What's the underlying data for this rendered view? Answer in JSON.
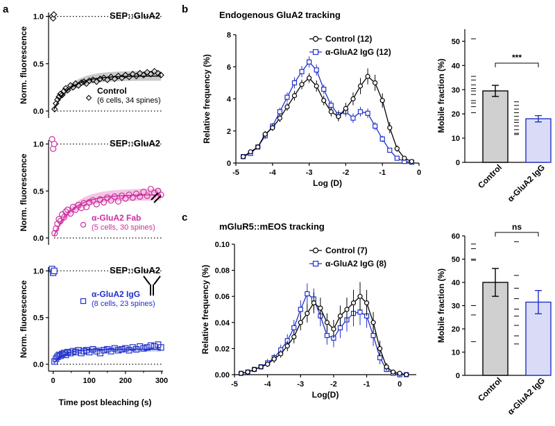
{
  "panel_labels": {
    "a": "a",
    "b": "b",
    "c": "c"
  },
  "colors": {
    "control": "#000000",
    "fab": "#cc2c9e",
    "igg": "#1f2fc8",
    "gray_fill": "#d0d0d0",
    "blue_fill": "#dadcf7",
    "fit_band": "#bdbdbd"
  },
  "chart_data": [
    {
      "id": "a1",
      "type": "scatter",
      "title": "SEP::GluA2",
      "xlabel": "",
      "ylabel": "Norm. fluorescence",
      "xlim": [
        -5,
        300
      ],
      "ylim": [
        0,
        1.1
      ],
      "yticks": [
        "0.0",
        "0.5",
        "1.0"
      ],
      "legend": {
        "label": "Control",
        "note": "(6 cells, 34 spines)"
      },
      "pre_points": [
        [
          -3,
          1.0
        ],
        [
          0,
          0.98
        ],
        [
          2,
          1.02
        ]
      ],
      "fit": {
        "plateau": 0.37,
        "tau": 45
      },
      "x": [
        4,
        8,
        12,
        16,
        20,
        25,
        30,
        35,
        40,
        48,
        55,
        62,
        70,
        78,
        85,
        92,
        100,
        110,
        120,
        130,
        140,
        150,
        160,
        170,
        180,
        190,
        200,
        210,
        220,
        230,
        240,
        250,
        260,
        270,
        280,
        290,
        298
      ],
      "values": [
        0.02,
        0.08,
        0.12,
        0.15,
        0.18,
        0.17,
        0.21,
        0.24,
        0.22,
        0.27,
        0.25,
        0.29,
        0.27,
        0.3,
        0.31,
        0.29,
        0.32,
        0.33,
        0.31,
        0.34,
        0.35,
        0.33,
        0.36,
        0.34,
        0.37,
        0.35,
        0.38,
        0.36,
        0.39,
        0.37,
        0.4,
        0.38,
        0.41,
        0.39,
        0.42,
        0.4,
        0.38
      ]
    },
    {
      "id": "a2",
      "type": "scatter",
      "title": "SEP::GluA2",
      "xlabel": "",
      "ylabel": "Norm. fluorescence",
      "xlim": [
        -5,
        300
      ],
      "ylim": [
        0,
        1.1
      ],
      "yticks": [
        "0.0",
        "0.5",
        "1.0"
      ],
      "legend": {
        "label": "α-GluA2 Fab",
        "note": "(5 cells, 30 spines)"
      },
      "pre_points": [
        [
          -3,
          1.05
        ],
        [
          0,
          0.95
        ],
        [
          3,
          1.0
        ]
      ],
      "fit": {
        "plateau": 0.46,
        "tau": 50
      },
      "x": [
        4,
        8,
        12,
        16,
        20,
        25,
        30,
        35,
        40,
        48,
        55,
        62,
        70,
        78,
        85,
        92,
        100,
        110,
        120,
        130,
        140,
        150,
        160,
        170,
        180,
        190,
        200,
        210,
        220,
        230,
        240,
        250,
        260,
        270,
        280,
        290,
        298
      ],
      "values": [
        0.05,
        0.1,
        0.15,
        0.2,
        0.18,
        0.25,
        0.22,
        0.28,
        0.3,
        0.26,
        0.33,
        0.3,
        0.35,
        0.32,
        0.37,
        0.33,
        0.38,
        0.4,
        0.36,
        0.41,
        0.38,
        0.43,
        0.4,
        0.44,
        0.39,
        0.45,
        0.42,
        0.46,
        0.43,
        0.47,
        0.44,
        0.49,
        0.45,
        0.52,
        0.48,
        0.5,
        0.46
      ]
    },
    {
      "id": "a3",
      "type": "scatter",
      "title": "SEP::GluA2",
      "xlabel": "Time post bleaching (s)",
      "ylabel": "Norm. fluorescence",
      "xlim": [
        -5,
        300
      ],
      "ylim": [
        0,
        1.1
      ],
      "xticks": [
        "0",
        "100",
        "200",
        "300"
      ],
      "yticks": [
        "0.0",
        "0.5",
        "1.0"
      ],
      "legend": {
        "label": "α-GluA2 IgG",
        "note": "(8 cells, 23 spines)"
      },
      "pre_points": [
        [
          -3,
          1.02
        ],
        [
          0,
          0.98
        ],
        [
          3,
          1.0
        ]
      ],
      "fit": {
        "plateau": 0.16,
        "tau": 30
      },
      "x": [
        4,
        8,
        12,
        16,
        20,
        25,
        30,
        35,
        40,
        48,
        55,
        62,
        70,
        78,
        85,
        92,
        100,
        110,
        120,
        130,
        140,
        150,
        160,
        170,
        180,
        190,
        200,
        210,
        220,
        230,
        240,
        250,
        260,
        270,
        280,
        290,
        298
      ],
      "values": [
        0.03,
        0.06,
        0.08,
        0.1,
        0.09,
        0.11,
        0.12,
        0.1,
        0.13,
        0.12,
        0.14,
        0.13,
        0.15,
        0.12,
        0.14,
        0.15,
        0.13,
        0.16,
        0.14,
        0.12,
        0.15,
        0.16,
        0.14,
        0.17,
        0.15,
        0.16,
        0.17,
        0.15,
        0.18,
        0.16,
        0.19,
        0.17,
        0.18,
        0.2,
        0.19,
        0.21,
        0.18
      ]
    },
    {
      "id": "b1",
      "type": "line",
      "title": "Endogenous GluA2 tracking",
      "xlabel": "Log (D)",
      "ylabel": "Relative frequency (%)",
      "xlim": [
        -5,
        0
      ],
      "ylim": [
        0,
        8
      ],
      "xticks": [
        "-5",
        "-4",
        "-3",
        "-2",
        "-1",
        "0"
      ],
      "yticks": [
        "0",
        "2",
        "4",
        "6",
        "8"
      ],
      "x": [
        -4.8,
        -4.6,
        -4.4,
        -4.2,
        -4.0,
        -3.8,
        -3.6,
        -3.4,
        -3.2,
        -3.0,
        -2.8,
        -2.6,
        -2.4,
        -2.2,
        -2.0,
        -1.8,
        -1.6,
        -1.4,
        -1.2,
        -1.0,
        -0.8,
        -0.6,
        -0.4,
        -0.2
      ],
      "series": [
        {
          "name": "Control (12)",
          "marker": "circle",
          "values": [
            0.4,
            0.7,
            1.0,
            1.8,
            2.2,
            2.8,
            3.5,
            4.2,
            4.9,
            5.3,
            4.8,
            3.9,
            3.2,
            2.9,
            3.4,
            4.0,
            4.8,
            5.4,
            5.0,
            3.9,
            2.2,
            0.9,
            0.3,
            0.1
          ],
          "errors": [
            0.1,
            0.15,
            0.15,
            0.2,
            0.2,
            0.25,
            0.25,
            0.3,
            0.3,
            0.3,
            0.35,
            0.3,
            0.3,
            0.3,
            0.35,
            0.4,
            0.5,
            0.5,
            0.5,
            0.45,
            0.35,
            0.2,
            0.1,
            0.05
          ]
        },
        {
          "name": "α-GluA2 IgG (12)",
          "marker": "square",
          "values": [
            0.4,
            0.6,
            1.0,
            1.7,
            2.3,
            3.2,
            4.1,
            5.0,
            5.7,
            6.3,
            5.8,
            4.6,
            3.6,
            3.0,
            3.2,
            2.8,
            3.2,
            3.1,
            2.3,
            1.5,
            0.8,
            0.3,
            0.1,
            0.05
          ],
          "errors": [
            0.1,
            0.1,
            0.15,
            0.2,
            0.2,
            0.25,
            0.3,
            0.35,
            0.35,
            0.35,
            0.35,
            0.3,
            0.3,
            0.3,
            0.3,
            0.3,
            0.3,
            0.3,
            0.25,
            0.2,
            0.15,
            0.1,
            0.05,
            0.05
          ]
        }
      ]
    },
    {
      "id": "b2",
      "type": "bar",
      "title": "",
      "xlabel": "",
      "ylabel": "Mobile fraction (%)",
      "ylim": [
        0,
        55
      ],
      "yticks": [
        "0",
        "10",
        "20",
        "30",
        "40",
        "50"
      ],
      "categories": [
        "Control",
        "α-GluA2 IgG"
      ],
      "values": [
        29.5,
        18.0
      ],
      "errors": [
        2.3,
        1.3
      ],
      "points": [
        [
          51,
          35.5,
          34,
          32,
          30.5,
          29.5,
          28,
          25.5,
          24.5,
          23,
          20.5
        ],
        [
          25,
          23.5,
          22,
          20.5,
          19,
          17.5,
          16.5,
          15,
          13.5,
          12,
          11.5
        ]
      ],
      "significance": "***"
    },
    {
      "id": "c1",
      "type": "line",
      "title": "mGluR5::mEOS tracking",
      "xlabel": "Log(D)",
      "ylabel": "Relative frequency (%)",
      "xlim": [
        -5,
        0.5
      ],
      "ylim": [
        0,
        0.1
      ],
      "xticks": [
        "-5",
        "-4",
        "-3",
        "-2",
        "-1",
        "0"
      ],
      "yticks": [
        "0.00",
        "0.02",
        "0.04",
        "0.06",
        "0.08",
        "0.10"
      ],
      "x": [
        -4.8,
        -4.6,
        -4.4,
        -4.2,
        -4.0,
        -3.8,
        -3.6,
        -3.4,
        -3.2,
        -3.0,
        -2.8,
        -2.6,
        -2.4,
        -2.2,
        -2.0,
        -1.8,
        -1.6,
        -1.4,
        -1.2,
        -1.0,
        -0.8,
        -0.6,
        -0.4,
        -0.2,
        0.0,
        0.2
      ],
      "series": [
        {
          "name": "Control (7)",
          "marker": "circle",
          "values": [
            0.001,
            0.002,
            0.004,
            0.006,
            0.008,
            0.012,
            0.016,
            0.022,
            0.029,
            0.04,
            0.047,
            0.055,
            0.051,
            0.04,
            0.035,
            0.045,
            0.05,
            0.055,
            0.06,
            0.055,
            0.04,
            0.02,
            0.006,
            0.002,
            0.001,
            0.0
          ],
          "errors": [
            0.001,
            0.001,
            0.002,
            0.002,
            0.002,
            0.003,
            0.003,
            0.004,
            0.005,
            0.006,
            0.007,
            0.008,
            0.008,
            0.007,
            0.007,
            0.008,
            0.009,
            0.01,
            0.011,
            0.01,
            0.008,
            0.006,
            0.003,
            0.001,
            0.001,
            0.0
          ]
        },
        {
          "name": "α-GluA2 IgG (8)",
          "marker": "square",
          "values": [
            0.001,
            0.002,
            0.004,
            0.006,
            0.009,
            0.013,
            0.019,
            0.026,
            0.036,
            0.05,
            0.062,
            0.058,
            0.045,
            0.03,
            0.028,
            0.036,
            0.042,
            0.047,
            0.048,
            0.045,
            0.03,
            0.013,
            0.004,
            0.001,
            0.0,
            0.0
          ],
          "errors": [
            0.001,
            0.001,
            0.002,
            0.002,
            0.003,
            0.003,
            0.004,
            0.005,
            0.006,
            0.007,
            0.008,
            0.008,
            0.008,
            0.007,
            0.007,
            0.008,
            0.009,
            0.01,
            0.01,
            0.009,
            0.008,
            0.005,
            0.002,
            0.001,
            0.0,
            0.0
          ]
        }
      ]
    },
    {
      "id": "c2",
      "type": "bar",
      "title": "",
      "xlabel": "",
      "ylabel": "Mobile fraction (%)",
      "ylim": [
        0,
        60
      ],
      "yticks": [
        "0",
        "10",
        "20",
        "30",
        "40",
        "50",
        "60"
      ],
      "categories": [
        "Control",
        "α-GluA2 IgG"
      ],
      "values": [
        40.0,
        31.5
      ],
      "errors": [
        6.0,
        5.0
      ],
      "points": [
        [
          56.5,
          54.5,
          50,
          49.5,
          30,
          26,
          14.5
        ],
        [
          57.5,
          43,
          37.5,
          33,
          28.5,
          25.5,
          21.5,
          17,
          13.5
        ]
      ],
      "significance": "ns"
    }
  ]
}
